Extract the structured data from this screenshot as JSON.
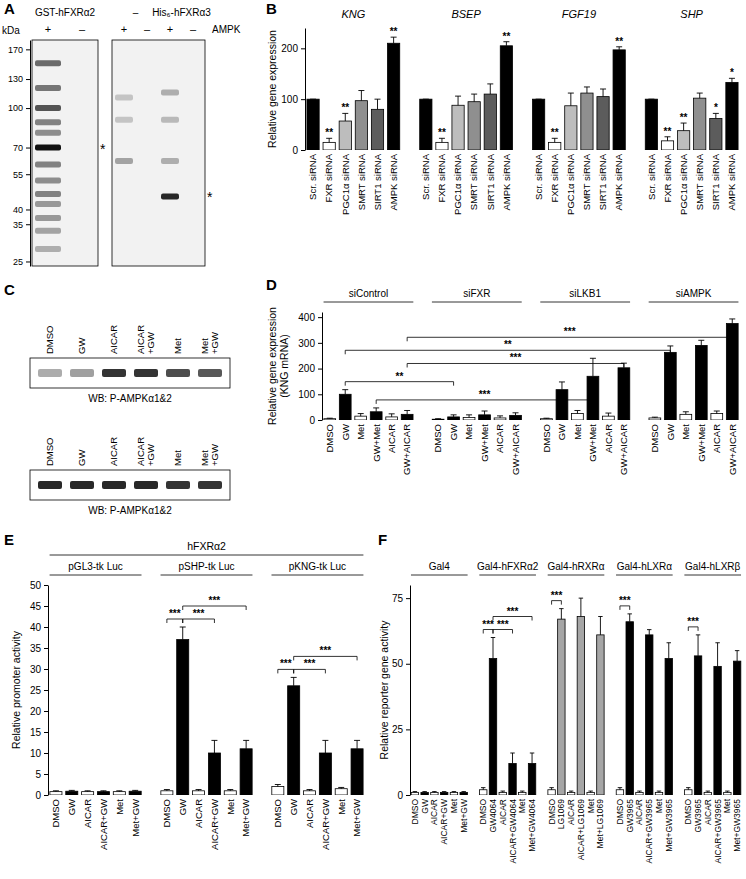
{
  "blots": [
    {
      "panel": "A",
      "kda_label": "kDa",
      "ylim": [
        24,
        185
      ],
      "log": true,
      "markers": [
        170,
        130,
        100,
        70,
        55,
        40,
        35,
        25
      ],
      "row_label": "AMPK",
      "constructs": [
        {
          "name": "GST-hFXRα2",
          "lanes": [
            "+",
            "–"
          ]
        },
        {
          "name": "–",
          "lanes": [
            "+",
            "–"
          ]
        },
        {
          "name": "His₆-hFXRα3",
          "lanes": [
            "+",
            "–"
          ]
        }
      ],
      "bands": [
        {
          "lane": 0,
          "kda": 150,
          "intensity": 0.6
        },
        {
          "lane": 0,
          "kda": 120,
          "intensity": 0.55
        },
        {
          "lane": 0,
          "kda": 100,
          "intensity": 0.7
        },
        {
          "lane": 0,
          "kda": 88,
          "intensity": 0.5
        },
        {
          "lane": 0,
          "kda": 80,
          "intensity": 0.45
        },
        {
          "lane": 0,
          "kda": 70,
          "intensity": 1
        },
        {
          "lane": 0,
          "kda": 60,
          "intensity": 0.5
        },
        {
          "lane": 0,
          "kda": 52,
          "intensity": 0.45
        },
        {
          "lane": 0,
          "kda": 46,
          "intensity": 0.5
        },
        {
          "lane": 0,
          "kda": 42,
          "intensity": 0.4
        },
        {
          "lane": 0,
          "kda": 37,
          "intensity": 0.4
        },
        {
          "lane": 0,
          "kda": 33,
          "intensity": 0.35
        },
        {
          "lane": 0,
          "kda": 28,
          "intensity": 0.3
        },
        {
          "lane": 2,
          "kda": 110,
          "intensity": 0.2
        },
        {
          "lane": 2,
          "kda": 90,
          "intensity": 0.2
        },
        {
          "lane": 2,
          "kda": 62,
          "intensity": 0.35
        },
        {
          "lane": 4,
          "kda": 115,
          "intensity": 0.3
        },
        {
          "lane": 4,
          "kda": 90,
          "intensity": 0.25
        },
        {
          "lane": 4,
          "kda": 62,
          "intensity": 0.3
        },
        {
          "lane": 4,
          "kda": 45,
          "intensity": 0.9
        }
      ],
      "asterisks": [
        {
          "lane": 0,
          "kda": 70,
          "label": "*"
        },
        {
          "lane": 4,
          "kda": 45,
          "label": "*"
        }
      ]
    },
    {
      "panel": "C",
      "lanes": [
        [
          "DMSO"
        ],
        [
          "GW"
        ],
        [
          "AICAR"
        ],
        [
          "AICAR",
          "+GW"
        ],
        [
          "Met"
        ],
        [
          "Met",
          "+GW"
        ]
      ],
      "blots": [
        {
          "label": "WB: P-AMPKα1&2",
          "intensity": [
            0.35,
            0.4,
            0.85,
            0.85,
            0.75,
            0.7
          ]
        },
        {
          "label": "WB: P-AMPKα1&2",
          "intensity": [
            0.9,
            0.9,
            0.9,
            0.9,
            0.85,
            0.85
          ]
        }
      ]
    }
  ],
  "chart_data": [
    {
      "panel": "B",
      "type": "bar",
      "ylabel": "Relative gene expression",
      "ylim": [
        0,
        240
      ],
      "yticks": [
        0,
        100,
        200
      ],
      "groups": [
        {
          "name": "KNG",
          "labels": [
            "Scr. siRNA",
            "FXR siRNA",
            "PGC1α siRNA",
            "SMRT siRNA",
            "SIRT1 siRNA",
            "AMPK siRNA"
          ],
          "colors": [
            "#000000",
            "#ffffff",
            "#bdbdbd",
            "#8f8f8f",
            "#5c5c5c",
            "#000000"
          ],
          "values": [
            100,
            15,
            57,
            97,
            80,
            210
          ],
          "errors": [
            0,
            8,
            15,
            20,
            20,
            12
          ],
          "significance": [
            null,
            "**",
            "**",
            null,
            null,
            "**"
          ]
        },
        {
          "name": "BSEP",
          "labels": [
            "Scr. siRNA",
            "FXR siRNA",
            "PGC1α siRNA",
            "SMRT siRNA",
            "SIRT1 siRNA",
            "AMPK siRNA"
          ],
          "colors": [
            "#000000",
            "#ffffff",
            "#bdbdbd",
            "#8f8f8f",
            "#5c5c5c",
            "#000000"
          ],
          "values": [
            100,
            15,
            88,
            95,
            110,
            205
          ],
          "errors": [
            0,
            8,
            18,
            15,
            20,
            8
          ],
          "significance": [
            null,
            "**",
            null,
            null,
            null,
            "**"
          ]
        },
        {
          "name": "FGF19",
          "labels": [
            "Scr. siRNA",
            "FXR siRNA",
            "PGC1α siRNA",
            "SMRT siRNA",
            "SIRT1 siRNA",
            "AMPK siRNA"
          ],
          "colors": [
            "#000000",
            "#ffffff",
            "#bdbdbd",
            "#8f8f8f",
            "#5c5c5c",
            "#000000"
          ],
          "values": [
            100,
            15,
            87,
            112,
            105,
            197
          ],
          "errors": [
            0,
            8,
            25,
            12,
            15,
            6
          ],
          "significance": [
            null,
            "**",
            null,
            null,
            null,
            "**"
          ]
        },
        {
          "name": "SHP",
          "labels": [
            "Scr. siRNA",
            "FXR siRNA",
            "PGC1α siRNA",
            "SMRT siRNA",
            "SIRT1 siRNA",
            "AMPK siRNA"
          ],
          "colors": [
            "#000000",
            "#ffffff",
            "#bdbdbd",
            "#8f8f8f",
            "#5c5c5c",
            "#000000"
          ],
          "values": [
            100,
            18,
            38,
            102,
            62,
            133
          ],
          "errors": [
            0,
            8,
            15,
            10,
            10,
            8
          ],
          "significance": [
            null,
            "**",
            "**",
            null,
            "*",
            "*"
          ]
        }
      ]
    },
    {
      "panel": "D",
      "type": "bar",
      "ylabel": [
        "Relative gene expression",
        "(KNG mRNA)"
      ],
      "ylim": [
        0,
        420
      ],
      "yticks": [
        0,
        100,
        200,
        300,
        400
      ],
      "groups": [
        {
          "name": "siControl",
          "labels": [
            "DMSO",
            "GW",
            "Met",
            "GW+Met",
            "AICAR",
            "GW+AICAR"
          ],
          "colors": [
            "#ffffff",
            "#000000",
            "#ffffff",
            "#000000",
            "#ffffff",
            "#000000"
          ],
          "values": [
            5,
            100,
            15,
            32,
            12,
            22
          ],
          "errors": [
            2,
            18,
            10,
            15,
            12,
            15
          ]
        },
        {
          "name": "siFXR",
          "labels": [
            "DMSO",
            "GW",
            "Met",
            "GW+Met",
            "AICAR",
            "GW+AICAR"
          ],
          "colors": [
            "#ffffff",
            "#000000",
            "#ffffff",
            "#000000",
            "#ffffff",
            "#000000"
          ],
          "values": [
            3,
            12,
            10,
            20,
            8,
            18
          ],
          "errors": [
            2,
            8,
            10,
            15,
            8,
            10
          ]
        },
        {
          "name": "siLKB1",
          "labels": [
            "DMSO",
            "GW",
            "Met",
            "GW+Met",
            "AICAR",
            "GW+AICAR"
          ],
          "colors": [
            "#ffffff",
            "#000000",
            "#ffffff",
            "#000000",
            "#ffffff",
            "#000000"
          ],
          "values": [
            5,
            118,
            25,
            170,
            15,
            203
          ],
          "errors": [
            2,
            30,
            12,
            70,
            12,
            18
          ]
        },
        {
          "name": "siAMPK",
          "labels": [
            "DMSO",
            "GW",
            "Met",
            "GW+Met",
            "AICAR",
            "GW+AICAR"
          ],
          "colors": [
            "#ffffff",
            "#000000",
            "#ffffff",
            "#000000",
            "#ffffff",
            "#000000"
          ],
          "values": [
            8,
            263,
            22,
            290,
            25,
            375
          ],
          "errors": [
            3,
            25,
            10,
            20,
            10,
            18
          ]
        }
      ],
      "comparisons": [
        {
          "from": [
            0,
            1
          ],
          "to": [
            1,
            1
          ],
          "label": "**"
        },
        {
          "from": [
            0,
            3
          ],
          "to": [
            2,
            3
          ],
          "label": "***"
        },
        {
          "from": [
            0,
            5
          ],
          "to": [
            2,
            5
          ],
          "label": "***"
        },
        {
          "from": [
            0,
            1
          ],
          "to": [
            3,
            1
          ],
          "label": "**"
        },
        {
          "from": [
            0,
            5
          ],
          "to": [
            3,
            5
          ],
          "label": "***"
        }
      ]
    },
    {
      "panel": "E",
      "type": "bar",
      "header": "hFXRα2",
      "ylabel": "Relative promoter activity",
      "ylim": [
        0,
        50
      ],
      "yticks": [
        0,
        5,
        10,
        15,
        20,
        25,
        30,
        35,
        40,
        45,
        50
      ],
      "groups": [
        {
          "name": "pGL3-tk Luc",
          "labels": [
            "DMSO",
            "GW",
            "AICAR",
            "AICAR+GW",
            "Met",
            "Met+GW"
          ],
          "colors": [
            "#ffffff",
            "#000000",
            "#ffffff",
            "#000000",
            "#ffffff",
            "#000000"
          ],
          "values": [
            0.8,
            0.9,
            0.8,
            0.8,
            0.8,
            0.9
          ],
          "errors": [
            0.2,
            0.2,
            0.2,
            0.2,
            0.2,
            0.2
          ]
        },
        {
          "name": "pSHP-tk Luc",
          "labels": [
            "DMSO",
            "GW",
            "AICAR",
            "AICAR+GW",
            "Met",
            "Met+GW"
          ],
          "colors": [
            "#ffffff",
            "#000000",
            "#ffffff",
            "#000000",
            "#ffffff",
            "#000000"
          ],
          "values": [
            1,
            37,
            1,
            10,
            1,
            11
          ],
          "errors": [
            0.3,
            3,
            0.3,
            3,
            0.3,
            2
          ]
        },
        {
          "name": "pKNG-tk Luc",
          "labels": [
            "DMSO",
            "GW",
            "AICAR",
            "AICAR+GW",
            "Met",
            "Met+GW"
          ],
          "colors": [
            "#ffffff",
            "#000000",
            "#ffffff",
            "#000000",
            "#ffffff",
            "#000000"
          ],
          "values": [
            2,
            26,
            1,
            10,
            1.5,
            11
          ],
          "errors": [
            0.5,
            2,
            0.3,
            3,
            0.3,
            2
          ]
        }
      ],
      "comparisons": [
        {
          "from": [
            1,
            0
          ],
          "to": [
            1,
            1
          ],
          "label": "***"
        },
        {
          "from": [
            1,
            1
          ],
          "to": [
            1,
            3
          ],
          "label": "***"
        },
        {
          "from": [
            1,
            1
          ],
          "to": [
            1,
            5
          ],
          "label": "***"
        },
        {
          "from": [
            2,
            0
          ],
          "to": [
            2,
            1
          ],
          "label": "***"
        },
        {
          "from": [
            2,
            1
          ],
          "to": [
            2,
            3
          ],
          "label": "***"
        },
        {
          "from": [
            2,
            1
          ],
          "to": [
            2,
            5
          ],
          "label": "***"
        }
      ]
    },
    {
      "panel": "F",
      "type": "bar",
      "ylabel": "Relative reporter gene activity",
      "ylim": [
        0,
        80
      ],
      "yticks": [
        0,
        25,
        50,
        75
      ],
      "groups": [
        {
          "name": "Gal4",
          "labels": [
            "DMSO",
            "GW",
            "AICAR",
            "AICAR+GW",
            "Met",
            "Met+GW"
          ],
          "colors": [
            "#ffffff",
            "#000000",
            "#ffffff",
            "#000000",
            "#ffffff",
            "#000000"
          ],
          "values": [
            1,
            1,
            1,
            1,
            1,
            1
          ],
          "errors": [
            0.3,
            0.3,
            0.3,
            0.3,
            0.3,
            0.3
          ]
        },
        {
          "name": "Gal4-hFXRα2",
          "labels": [
            "DMSO",
            "GW4064",
            "AICAR",
            "AICAR+GW4064",
            "Met",
            "Met+GW4064"
          ],
          "colors": [
            "#ffffff",
            "#000000",
            "#ffffff",
            "#000000",
            "#ffffff",
            "#000000"
          ],
          "values": [
            2,
            52,
            1,
            12,
            1,
            12
          ],
          "errors": [
            0.8,
            8,
            0.5,
            4,
            0.5,
            4
          ]
        },
        {
          "name": "Gal4-hRXRα",
          "labels": [
            "DMSO",
            "LG1069",
            "AICAR",
            "AICAR+LG1069",
            "Met",
            "Met+LG1069"
          ],
          "colors": [
            "#ffffff",
            "#a6a6a6",
            "#ffffff",
            "#a6a6a6",
            "#ffffff",
            "#a6a6a6"
          ],
          "values": [
            2,
            67,
            1,
            68,
            1,
            61
          ],
          "errors": [
            0.8,
            4,
            0.5,
            7,
            0.5,
            7
          ]
        },
        {
          "name": "Gal4-hLXRα",
          "labels": [
            "DMSO",
            "GW3965",
            "AICAR",
            "AICAR+GW3965",
            "Met",
            "Met+GW3965"
          ],
          "colors": [
            "#ffffff",
            "#000000",
            "#ffffff",
            "#000000",
            "#ffffff",
            "#000000"
          ],
          "values": [
            2,
            66,
            1,
            61,
            1,
            52
          ],
          "errors": [
            0.8,
            3,
            0.5,
            2,
            0.5,
            6
          ]
        },
        {
          "name": "Gal4-hLXRβ",
          "labels": [
            "DMSO",
            "GW3965",
            "AICAR",
            "AICAR+GW3965",
            "Met",
            "Met+GW3965"
          ],
          "colors": [
            "#ffffff",
            "#000000",
            "#ffffff",
            "#000000",
            "#ffffff",
            "#000000"
          ],
          "values": [
            2,
            53,
            1,
            49,
            1,
            51
          ],
          "errors": [
            0.8,
            8,
            0.5,
            9,
            0.5,
            4
          ]
        }
      ],
      "comparisons": [
        {
          "from": [
            1,
            0
          ],
          "to": [
            1,
            1
          ],
          "label": "***"
        },
        {
          "from": [
            1,
            1
          ],
          "to": [
            1,
            3
          ],
          "label": "***"
        },
        {
          "from": [
            1,
            1
          ],
          "to": [
            1,
            5
          ],
          "label": "***"
        },
        {
          "from": [
            2,
            0
          ],
          "to": [
            2,
            1
          ],
          "label": "***"
        },
        {
          "from": [
            3,
            0
          ],
          "to": [
            3,
            1
          ],
          "label": "***"
        },
        {
          "from": [
            4,
            0
          ],
          "to": [
            4,
            1
          ],
          "label": "***"
        }
      ]
    }
  ]
}
